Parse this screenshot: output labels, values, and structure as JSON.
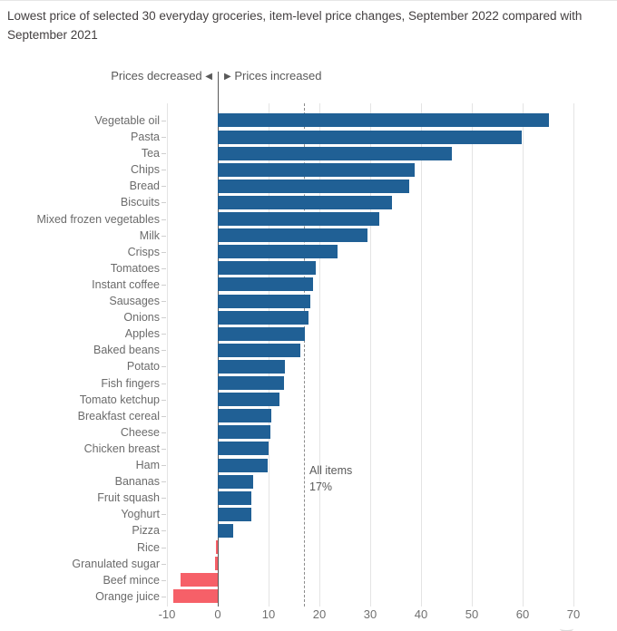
{
  "direction_legend": {
    "decreased_label": "Prices decreased",
    "increased_label": "Prices increased",
    "left_arrow": "◀",
    "right_arrow": "▶"
  },
  "chart_data": {
    "type": "bar",
    "orientation": "horizontal",
    "title": "Lowest price of selected 30 everyday groceries, item-level price changes, September 2022 compared with September 2021",
    "xlabel": "",
    "ylabel": "",
    "xlim": [
      -10,
      70
    ],
    "x_ticks": [
      -10,
      0,
      10,
      20,
      30,
      40,
      50,
      60,
      70
    ],
    "grid": true,
    "categories": [
      "Vegetable oil",
      "Pasta",
      "Tea",
      "Chips",
      "Bread",
      "Biscuits",
      "Mixed frozen vegetables",
      "Milk",
      "Crisps",
      "Tomatoes",
      "Instant coffee",
      "Sausages",
      "Onions",
      "Apples",
      "Baked beans",
      "Potato",
      "Fish fingers",
      "Tomato ketchup",
      "Breakfast cereal",
      "Cheese",
      "Chicken breast",
      "Ham",
      "Bananas",
      "Fruit squash",
      "Yoghurt",
      "Pizza",
      "Rice",
      "Granulated sugar",
      "Beef mince",
      "Orange juice"
    ],
    "values": [
      65.2,
      59.9,
      46.0,
      38.7,
      37.6,
      34.3,
      31.7,
      29.4,
      23.6,
      19.2,
      18.7,
      18.3,
      17.9,
      17.2,
      16.2,
      13.2,
      13.0,
      12.1,
      10.5,
      10.4,
      10.0,
      9.9,
      7.0,
      6.6,
      6.6,
      3.1,
      -0.4,
      -0.5,
      -7.3,
      -8.8
    ],
    "reference_line": {
      "value": 17,
      "label_line1": "All items",
      "label_line2": "17%"
    },
    "colors": {
      "positive": "#206095",
      "negative": "#f66068"
    }
  }
}
